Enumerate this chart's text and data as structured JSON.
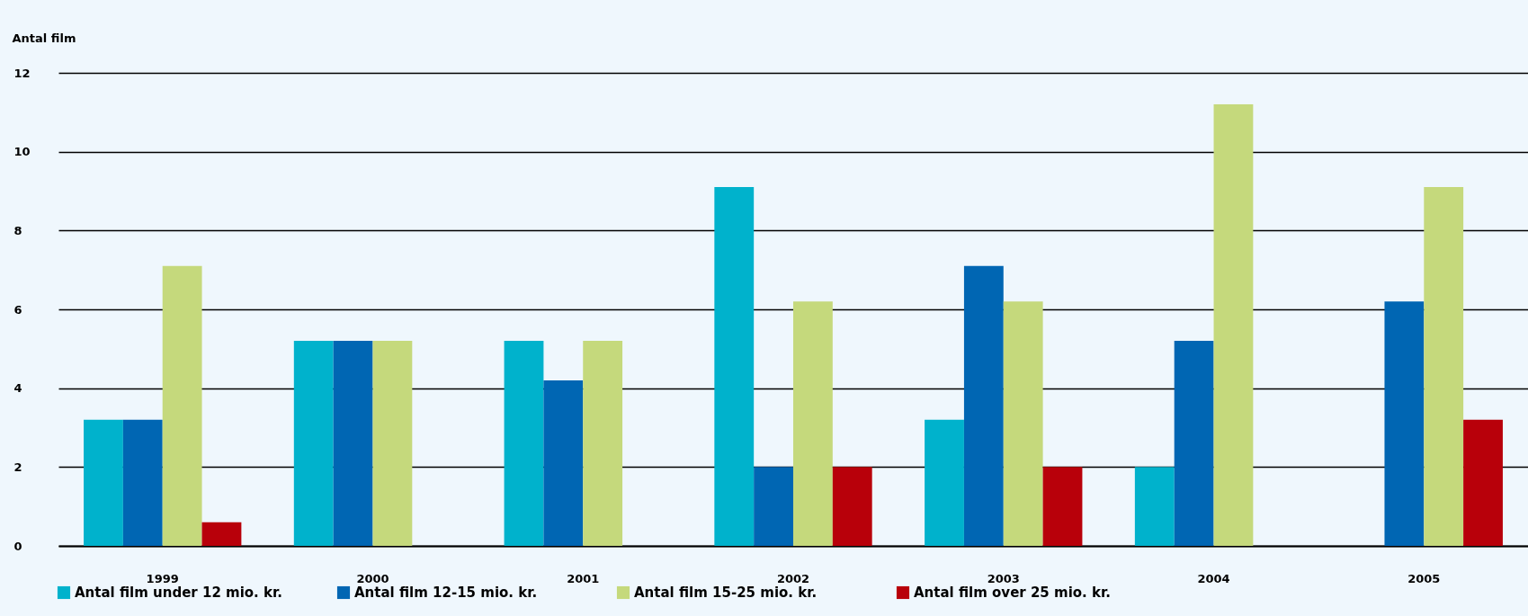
{
  "chart_data": {
    "type": "bar",
    "ylabel": "Antal film",
    "categories": [
      "1999",
      "2000",
      "2001",
      "2002",
      "2003",
      "2004",
      "2005"
    ],
    "series": [
      {
        "name": "Antal film under 12 mio. kr.",
        "color": "#00b2cc",
        "values": [
          3.2,
          5.2,
          5.2,
          9.1,
          3.2,
          2,
          null
        ]
      },
      {
        "name": "Antal film 12-15 mio. kr.",
        "color": "#0066b3",
        "values": [
          3.2,
          5.2,
          4.2,
          2,
          7.1,
          5.2,
          6.2
        ]
      },
      {
        "name": "Antal film 15-25 mio. kr.",
        "color": "#c5d97c",
        "values": [
          7.1,
          5.2,
          5.2,
          6.2,
          6.2,
          11.2,
          9.1
        ]
      },
      {
        "name": "Antal film over 25 mio. kr.",
        "color": "#b8000a",
        "values": [
          0.6,
          null,
          null,
          2,
          2,
          null,
          3.2
        ]
      }
    ],
    "ylim": [
      0,
      12
    ],
    "yticks": [
      0,
      2,
      4,
      6,
      8,
      10,
      12
    ],
    "grid": "y",
    "legend": "bottom"
  }
}
